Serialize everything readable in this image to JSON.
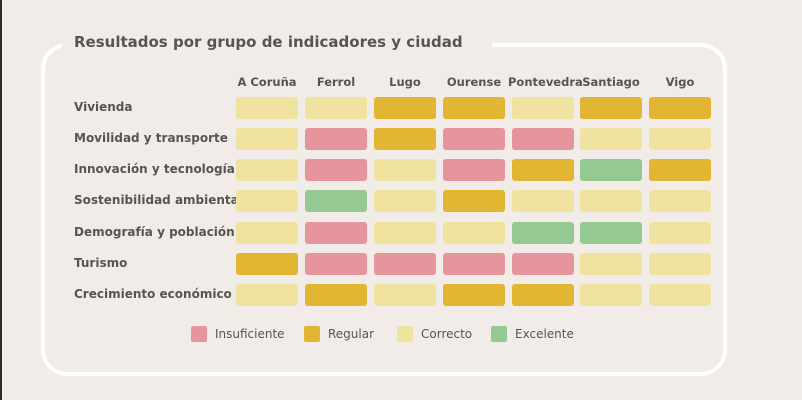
{
  "chart_data": {
    "type": "heatmap",
    "title": "Resultados por grupo de indicadores y ciudad",
    "columns": [
      "A Coruña",
      "Ferrol",
      "Lugo",
      "Ourense",
      "Pontevedra",
      "Santiago",
      "Vigo"
    ],
    "rows": [
      "Vivienda",
      "Movilidad y transporte",
      "Innovación y tecnología",
      "Sostenibilidad ambiental",
      "Demografía y población",
      "Turismo",
      "Crecimiento económico"
    ],
    "values": [
      [
        "Correcto",
        "Correcto",
        "Regular",
        "Regular",
        "Correcto",
        "Regular",
        "Regular"
      ],
      [
        "Correcto",
        "Insuficiente",
        "Regular",
        "Insuficiente",
        "Insuficiente",
        "Correcto",
        "Correcto"
      ],
      [
        "Correcto",
        "Insuficiente",
        "Correcto",
        "Insuficiente",
        "Regular",
        "Excelente",
        "Regular"
      ],
      [
        "Correcto",
        "Excelente",
        "Correcto",
        "Regular",
        "Correcto",
        "Correcto",
        "Correcto"
      ],
      [
        "Correcto",
        "Insuficiente",
        "Correcto",
        "Correcto",
        "Excelente",
        "Excelente",
        "Correcto"
      ],
      [
        "Regular",
        "Insuficiente",
        "Insuficiente",
        "Insuficiente",
        "Insuficiente",
        "Correcto",
        "Correcto"
      ],
      [
        "Correcto",
        "Regular",
        "Correcto",
        "Regular",
        "Regular",
        "Correcto",
        "Correcto"
      ]
    ],
    "legend": [
      {
        "label": "Insuficiente",
        "color": "#e5959b"
      },
      {
        "label": "Regular",
        "color": "#e2b632"
      },
      {
        "label": "Correcto",
        "color": "#f0e3a0"
      },
      {
        "label": "Excelente",
        "color": "#95c992"
      }
    ],
    "legend_position": "bottom"
  }
}
